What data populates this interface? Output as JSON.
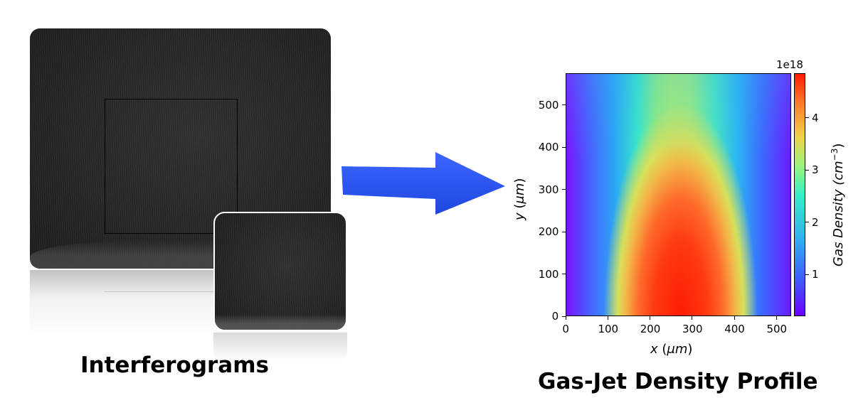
{
  "left_panel": {
    "caption": "Interferograms"
  },
  "arrow": {
    "color": "#1f47e0"
  },
  "right_panel": {
    "caption": "Gas-Jet Density Profile"
  },
  "chart_data": {
    "type": "heatmap",
    "title": "",
    "xlabel": "x (μm)",
    "ylabel": "y (μm)",
    "xlim": [
      0,
      535
    ],
    "ylim": [
      0,
      575
    ],
    "xticks": [
      "0",
      "100",
      "200",
      "300",
      "400",
      "500"
    ],
    "yticks": [
      "0",
      "100",
      "200",
      "300",
      "400",
      "500"
    ],
    "colorbar": {
      "label": "Gas Density (cm−3)",
      "label_base": "Gas Density  (cm",
      "label_exp": "−3",
      "label_close": ")",
      "offset_text": "1e18",
      "range": [
        0.2,
        4.85
      ],
      "ticks": [
        "1",
        "2",
        "3",
        "4"
      ],
      "colormap": "rainbow"
    },
    "peak": {
      "x": 275,
      "y": 0,
      "value": 4.8
    }
  }
}
